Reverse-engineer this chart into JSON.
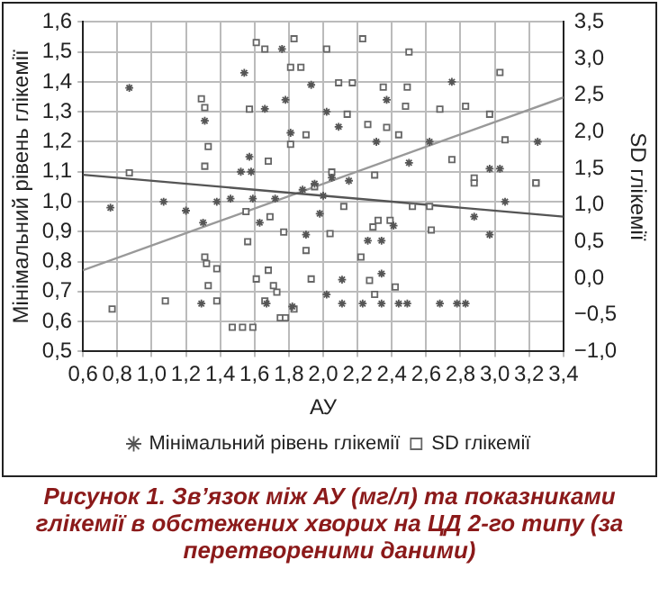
{
  "chart_data": {
    "type": "scatter",
    "title": "Рисунок 1.  Зв’язок між АУ (мг/л) та показниками глікемії в обстежених хворих на ЦД 2-го типу (за перетвореними даними)",
    "xlabel": "АУ",
    "ylabel": "Мінімальний рівень глікемії",
    "y2label": "SD глікемії",
    "xlim": [
      0.6,
      3.4
    ],
    "xticks": [
      {
        "value": 0.6,
        "label": "0,6"
      },
      {
        "value": 0.8,
        "label": "0,8"
      },
      {
        "value": 1.0,
        "label": "1,0"
      },
      {
        "value": 1.2,
        "label": "1,2"
      },
      {
        "value": 1.4,
        "label": "1,4"
      },
      {
        "value": 1.6,
        "label": "1,6"
      },
      {
        "value": 1.8,
        "label": "1,8"
      },
      {
        "value": 2.0,
        "label": "2,0"
      },
      {
        "value": 2.2,
        "label": "2,2"
      },
      {
        "value": 2.4,
        "label": "2,4"
      },
      {
        "value": 2.6,
        "label": "2,6"
      },
      {
        "value": 2.8,
        "label": "2,8"
      },
      {
        "value": 3.0,
        "label": "3,0"
      },
      {
        "value": 3.2,
        "label": "3,2"
      },
      {
        "value": 3.4,
        "label": "3,4"
      }
    ],
    "ylim": [
      0.5,
      1.6
    ],
    "yticks": [
      {
        "value": 0.5,
        "label": "0,5"
      },
      {
        "value": 0.6,
        "label": "0,6"
      },
      {
        "value": 0.7,
        "label": "0,7"
      },
      {
        "value": 0.8,
        "label": "0,8"
      },
      {
        "value": 0.9,
        "label": "0,9"
      },
      {
        "value": 1.0,
        "label": "1,0"
      },
      {
        "value": 1.1,
        "label": "1,1"
      },
      {
        "value": 1.2,
        "label": "1,2"
      },
      {
        "value": 1.3,
        "label": "1,3"
      },
      {
        "value": 1.4,
        "label": "1,4"
      },
      {
        "value": 1.5,
        "label": "1,5"
      },
      {
        "value": 1.6,
        "label": "1,6"
      }
    ],
    "y2lim": [
      -1.0,
      3.5
    ],
    "y2ticks": [
      {
        "value": -1.0,
        "label": "−1,0"
      },
      {
        "value": -0.5,
        "label": "−0,5"
      },
      {
        "value": 0.0,
        "label": "0,0"
      },
      {
        "value": 0.5,
        "label": "0,5"
      },
      {
        "value": 1.0,
        "label": "1,0"
      },
      {
        "value": 1.5,
        "label": "1,5"
      },
      {
        "value": 2.0,
        "label": "2,0"
      },
      {
        "value": 2.5,
        "label": "2,5"
      },
      {
        "value": 3.0,
        "label": "3,0"
      },
      {
        "value": 3.5,
        "label": "3,5"
      }
    ],
    "grid": true,
    "legend": "bottom",
    "series": [
      {
        "name": "Мінімальний рівень глікемії",
        "color": "#555555",
        "marker": "cross",
        "x": [
          0.87,
          1.54,
          1.31,
          1.66,
          1.76,
          1.78,
          1.81,
          1.57,
          1.52,
          1.58,
          1.93,
          2.75,
          2.37,
          3.25,
          2.62,
          2.97,
          3.03,
          2.5,
          2.09,
          2.31,
          2.02,
          0.76,
          1.07,
          1.2,
          1.38,
          1.46,
          1.3,
          1.29,
          1.63,
          1.67,
          1.82,
          1.9,
          1.59,
          1.72,
          2.11,
          2.23,
          2.34,
          2.44,
          2.49,
          2.68,
          2.78,
          2.83,
          2.34,
          2.11,
          2.88,
          2.97,
          3.06,
          2.26,
          2.34,
          2.41,
          2.02,
          1.95,
          2.0,
          2.05,
          1.88,
          2.15,
          1.98
        ],
        "values": [
          1.38,
          1.43,
          1.27,
          1.31,
          1.51,
          1.34,
          1.23,
          1.15,
          1.1,
          1.1,
          1.39,
          1.4,
          1.34,
          1.2,
          1.2,
          1.11,
          1.11,
          1.13,
          1.25,
          1.2,
          1.3,
          0.98,
          1.0,
          0.97,
          1.0,
          1.01,
          0.93,
          0.66,
          0.93,
          0.66,
          0.65,
          0.89,
          1.01,
          1.01,
          0.66,
          0.66,
          0.66,
          0.66,
          0.66,
          0.66,
          0.66,
          0.66,
          0.76,
          0.74,
          0.95,
          0.89,
          1.0,
          0.87,
          0.87,
          0.92,
          0.69,
          1.06,
          1.02,
          1.08,
          1.04,
          1.07,
          0.96
        ]
      },
      {
        "name": "SD глікемії",
        "color": "#666666",
        "marker": "square",
        "axis": "y2",
        "x": [
          0.87,
          1.29,
          1.31,
          1.33,
          1.31,
          1.61,
          1.66,
          1.83,
          1.81,
          1.87,
          1.57,
          1.81,
          1.9,
          1.68,
          2.23,
          2.02,
          2.5,
          3.03,
          2.17,
          2.09,
          2.35,
          2.49,
          2.48,
          2.68,
          2.83,
          2.97,
          3.06,
          2.14,
          2.37,
          2.26,
          2.44,
          2.75,
          2.88,
          3.24,
          2.3,
          0.77,
          1.08,
          1.38,
          1.31,
          1.32,
          1.33,
          1.38,
          1.47,
          1.53,
          1.59,
          1.56,
          1.61,
          1.68,
          1.66,
          1.71,
          1.73,
          1.75,
          1.78,
          1.83,
          1.77,
          1.69,
          1.55,
          1.93,
          1.9,
          2.22,
          2.27,
          2.3,
          2.42,
          2.63,
          2.88,
          3.24,
          2.52,
          2.62,
          2.32,
          2.39,
          2.29,
          2.04,
          2.12,
          1.95,
          2.05
        ],
        "values": [
          1.44,
          2.45,
          2.33,
          1.8,
          1.53,
          3.22,
          3.13,
          3.27,
          2.88,
          2.88,
          2.31,
          1.83,
          1.96,
          1.6,
          3.27,
          3.13,
          3.09,
          2.81,
          2.67,
          2.67,
          2.61,
          2.61,
          2.35,
          2.31,
          2.35,
          2.24,
          1.89,
          2.24,
          2.06,
          2.1,
          1.96,
          1.62,
          1.37,
          1.3,
          1.41,
          -0.42,
          -0.31,
          -0.31,
          0.29,
          0.2,
          -0.1,
          0.13,
          -0.67,
          -0.67,
          -0.67,
          0.5,
          -0.01,
          0.11,
          -0.31,
          -0.1,
          -0.19,
          -0.54,
          -0.54,
          -0.42,
          0.63,
          0.84,
          0.91,
          -0.01,
          0.38,
          0.29,
          -0.03,
          -0.22,
          -0.12,
          0.66,
          1.3,
          1.3,
          0.98,
          0.98,
          0.79,
          0.79,
          0.7,
          0.61,
          0.98,
          1.25,
          1.45
        ]
      },
      {
        "type": "line",
        "axis": "y",
        "color": "#555555",
        "marker": "none",
        "x": [
          0.6,
          3.4
        ],
        "values": [
          1.09,
          0.95
        ]
      },
      {
        "type": "line",
        "axis": "y2",
        "color": "#999999",
        "marker": "none",
        "x": [
          0.6,
          3.4
        ],
        "values": [
          0.11,
          2.47
        ]
      }
    ]
  }
}
